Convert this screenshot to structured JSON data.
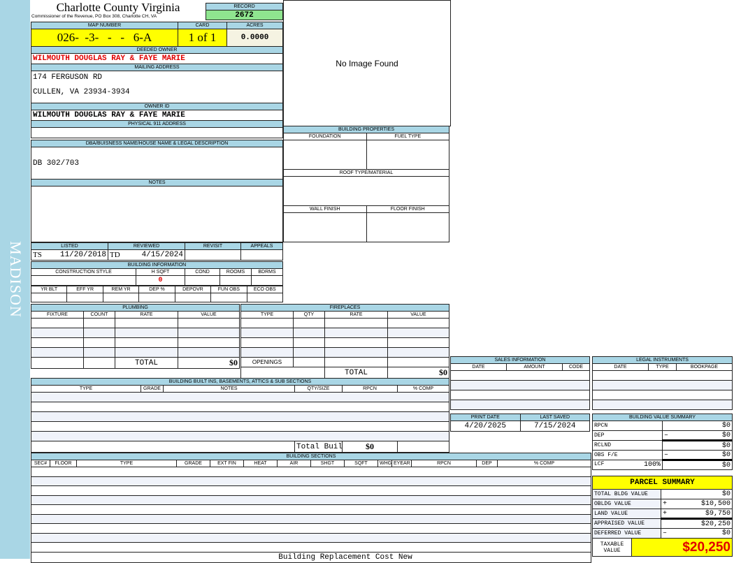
{
  "side_label": "MADISON",
  "header": {
    "title": "Charlotte County Virginia",
    "subtitle": "Commissioner of the Revenue, PO Box 308, Charlotte CH, VA"
  },
  "record": {
    "label": "RECORD",
    "value": "2672"
  },
  "map": {
    "map_label": "MAP NUMBER",
    "map_value": "026-  -3-   -   -   6-A",
    "card_label": "CARD",
    "card_value": "1 of 1",
    "acres_label": "ACRES",
    "acres_value": "0.0000"
  },
  "owner": {
    "deeded_label": "DEEDED OWNER",
    "deeded_value": "WILMOUTH DOUGLAS RAY & FAYE MARIE",
    "mailing_label": "MAILING ADDRESS",
    "mailing_line1": "174 FERGUSON RD",
    "mailing_line2": "CULLEN, VA 23934-3934",
    "owner_id_label": "OWNER ID",
    "owner_id_value": "WILMOUTH DOUGLAS RAY & FAYE MARIE",
    "physical_label": "PHYSICAL 911 ADDRESS",
    "physical_value": ""
  },
  "dba": {
    "label": "DBA/BUISNESS NAME/HOUSE NAME & LEGAL DESCRIPTION",
    "value": "DB 302/703"
  },
  "notes": {
    "label": "NOTES",
    "value": ""
  },
  "image": {
    "text": "No Image Found"
  },
  "building_properties": {
    "label": "BUILDING PROPERTIES",
    "foundation": "FOUNDATION",
    "fuel": "FUEL TYPE",
    "roof": "ROOF TYPE/MATERIAL",
    "wall": "WALL FINISH",
    "floor": "FLOOR FINISH"
  },
  "review": {
    "listed_label": "LISTED",
    "listed_init": "TS",
    "listed_date": "11/20/2018",
    "reviewed_label": "REVIEWED",
    "reviewed_init": "TD",
    "reviewed_date": "4/15/2024",
    "revisit_label": "REVISIT",
    "appeals_label": "APPEALS"
  },
  "building_info": {
    "label": "BUILDING INFORMATION",
    "row1": [
      "CONSTRUCTION STYLE",
      "H SQFT",
      "COND",
      "ROOMS",
      "BDRMS"
    ],
    "hsqft_value": "0",
    "row2": [
      "YR BLT",
      "EFF YR",
      "REM YR",
      "DEP %",
      "DEPOVR",
      "FUN OBS",
      "ECO OBS"
    ]
  },
  "plumbing": {
    "label": "PLUMBING",
    "columns": [
      "FIXTURE",
      "COUNT",
      "RATE",
      "VALUE"
    ],
    "total_label": "TOTAL",
    "total_value": "$0"
  },
  "fireplaces": {
    "label": "FIREPLACES",
    "columns": [
      "TYPE",
      "QTY",
      "RATE",
      "VALUE"
    ],
    "openings_label": "OPENINGS",
    "total_label": "TOTAL",
    "total_value": "$0"
  },
  "sales": {
    "label": "SALES INFORMATION",
    "columns": [
      "DATE",
      "AMOUNT",
      "CODE"
    ]
  },
  "legal": {
    "label": "LEGAL INSTRUMENTS",
    "columns": [
      "DATE",
      "TYPE",
      "BOOKPAGE"
    ]
  },
  "dates": {
    "print_label": "PRINT DATE",
    "print_value": "4/20/2025",
    "saved_label": "LAST SAVED",
    "saved_value": "7/15/2024"
  },
  "bvs": {
    "label": "BUILDING VALUE SUMMARY",
    "rows": [
      {
        "label": "RPCN",
        "extra": "",
        "sign": "",
        "value": "$0"
      },
      {
        "label": "DEP",
        "extra": "",
        "sign": "–",
        "value": "$0"
      },
      {
        "label": "RCLND",
        "extra": "",
        "sign": "",
        "value": "$0"
      },
      {
        "label": "OBS F/E",
        "extra": "",
        "sign": "–",
        "value": "$0"
      },
      {
        "label": "LCF",
        "extra": "100%",
        "sign": "",
        "value": "$0"
      }
    ]
  },
  "builtins": {
    "label": "BUILDING BUILT INS, BASEMENTS, ATTICS & SUB SECTIONS",
    "columns": [
      "TYPE",
      "GRADE",
      "NOTES",
      "QTY/SIZE",
      "RPCN",
      "% COMP"
    ],
    "total_label": "Total Built In Value",
    "total_value": "$0"
  },
  "sections": {
    "label": "BUILDING SECTIONS",
    "columns": [
      "SEC#",
      "FLOOR",
      "TYPE",
      "GRADE",
      "EXT FIN",
      "HEAT",
      "AIR",
      "SHGT",
      "SQFT",
      "WHGT",
      "EYEAR",
      "RPCN",
      "DEP",
      "% COMP"
    ],
    "footer": "Building Replacement Cost New"
  },
  "parcel": {
    "label": "PARCEL SUMMARY",
    "rows": [
      {
        "label": "TOTAL BLDG VALUE",
        "sign": "",
        "value": "$0"
      },
      {
        "label": "OBLDG VALUE",
        "sign": "+",
        "value": "$10,500"
      },
      {
        "label": "LAND VALUE",
        "sign": "+",
        "value": "$9,750"
      },
      {
        "label": "APPRAISED VALUE",
        "sign": "",
        "value": "$20,250"
      },
      {
        "label": "DEFERRED VALUE",
        "sign": "–",
        "value": "$0"
      }
    ],
    "taxable_label": "TAXABLE VALUE",
    "taxable_value": "$20,250"
  },
  "colors": {
    "header_blue": "#a9d6e5",
    "yellow": "#ffff00",
    "green": "#8fe58f",
    "red": "#e00000"
  }
}
